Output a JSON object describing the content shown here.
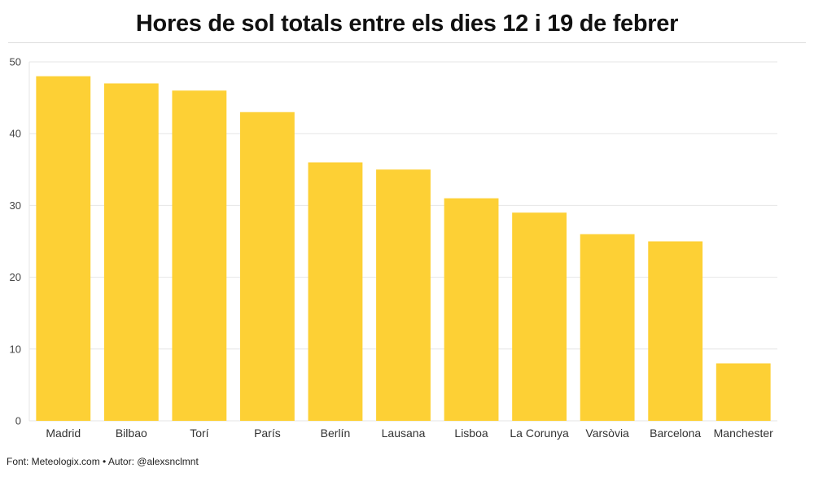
{
  "chart_data": {
    "type": "bar",
    "title": "Hores de sol totals entre els dies 12 i 19 de febrer",
    "xlabel": "",
    "ylabel": "",
    "ylim": [
      0,
      50
    ],
    "yticks": [
      0,
      10,
      20,
      30,
      40,
      50
    ],
    "grid": true,
    "categories": [
      "Madrid",
      "Bilbao",
      "Torí",
      "París",
      "Berlín",
      "Lausana",
      "Lisboa",
      "La Corunya",
      "Varsòvia",
      "Barcelona",
      "Manchester"
    ],
    "values": [
      48,
      47,
      46,
      43,
      36,
      35,
      31,
      29,
      26,
      25,
      8
    ],
    "bar_color": "#fdd035"
  },
  "footer": {
    "source": "Font: Meteologix.com • Autor: @alexsnclmnt"
  }
}
